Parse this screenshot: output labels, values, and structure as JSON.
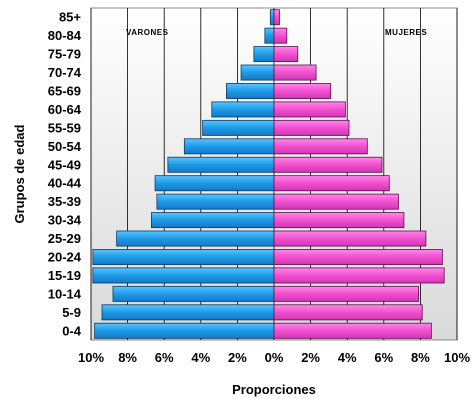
{
  "chart_data": {
    "type": "bar",
    "orientation": "horizontal",
    "subtype": "population-pyramid",
    "categories": [
      "0-4",
      "5-9",
      "10-14",
      "15-19",
      "20-24",
      "25-29",
      "30-34",
      "35-39",
      "40-44",
      "45-49",
      "50-54",
      "55-59",
      "60-64",
      "65-69",
      "70-74",
      "75-79",
      "80-84",
      "85+"
    ],
    "series": [
      {
        "name": "VARONES",
        "color": "#2aa3e8",
        "values": [
          9.8,
          9.4,
          8.8,
          9.9,
          9.9,
          8.6,
          6.7,
          6.4,
          6.5,
          5.8,
          4.9,
          3.9,
          3.4,
          2.6,
          1.8,
          1.1,
          0.5,
          0.2
        ]
      },
      {
        "name": "MUJERES",
        "color": "#f24fcf",
        "values": [
          8.6,
          8.1,
          7.9,
          9.3,
          9.2,
          8.3,
          7.1,
          6.8,
          6.3,
          5.9,
          5.1,
          4.1,
          3.9,
          3.1,
          2.3,
          1.3,
          0.7,
          0.3
        ]
      }
    ],
    "ylabel": "Grupos de edad",
    "xlabel": "Proporciones",
    "xticks": [
      "10%",
      "8%",
      "6%",
      "4%",
      "2%",
      "0%",
      "2%",
      "4%",
      "6%",
      "8%",
      "10%"
    ],
    "xlim": [
      -10,
      10
    ],
    "grid": true,
    "legend": "panel labels top-left and top-right"
  }
}
